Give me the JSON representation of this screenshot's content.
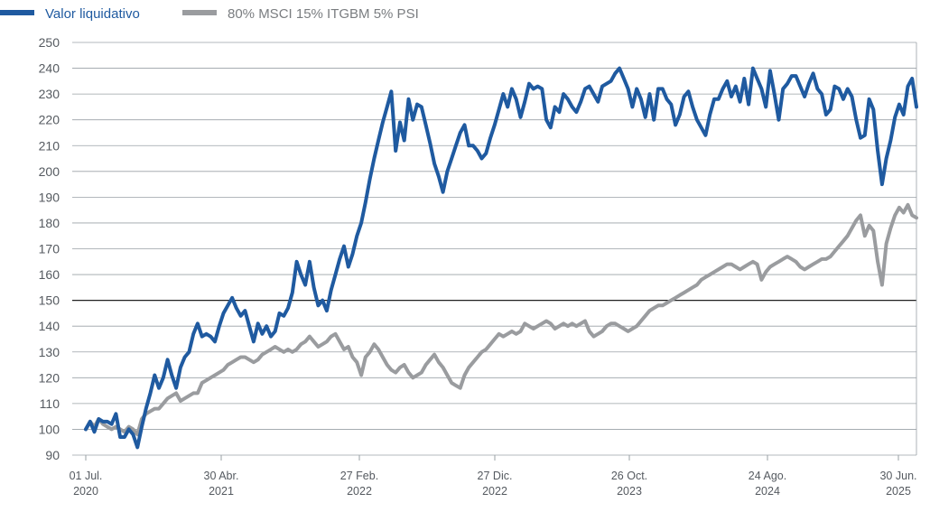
{
  "colors": {
    "series_primary": "#1f5aa0",
    "series_secondary": "#9a9c9f",
    "grid": "#9aa0a6",
    "grid_highlight": "#222222",
    "text": "#555a60"
  },
  "chart_data": {
    "type": "line",
    "title": "",
    "xlabel": "",
    "ylabel": "",
    "ylim": [
      90,
      250
    ],
    "yticks": [
      90,
      100,
      110,
      120,
      130,
      140,
      150,
      160,
      170,
      180,
      190,
      200,
      210,
      220,
      230,
      240,
      250
    ],
    "highlight_gridline": 150,
    "x_range_years": [
      2020.5,
      2025.5
    ],
    "x_ticks": [
      {
        "line1": "01 Jul.",
        "line2": "2020",
        "t": 2020.5
      },
      {
        "line1": "30 Abr.",
        "line2": "2021",
        "t": 2021.0
      },
      {
        "line1": "27 Feb.",
        "line2": "2022",
        "t": 2021.5
      },
      {
        "line1": "27 Dic.",
        "line2": "2022",
        "t": 2022.0
      },
      {
        "line1": "26 Oct.",
        "line2": "2023",
        "t": 2022.5
      },
      {
        "line1": "24 Ago.",
        "line2": "2024",
        "t": 2023.0
      },
      {
        "line1": "30 Jun.",
        "line2": "2025",
        "t": 2023.5
      }
    ],
    "legend": {
      "placement": "top-left"
    },
    "series": [
      {
        "name": "Valor liquidativo",
        "color": "#1f5aa0",
        "values": [
          100,
          103,
          99,
          104,
          103,
          103,
          102,
          106,
          97,
          97,
          100,
          98,
          93,
          101,
          108,
          114,
          121,
          116,
          120,
          127,
          121,
          116,
          124,
          128,
          130,
          137,
          141,
          136,
          137,
          136,
          134,
          140,
          145,
          148,
          151,
          147,
          144,
          146,
          140,
          134,
          141,
          137,
          140,
          136,
          138,
          145,
          144,
          147,
          153,
          165,
          160,
          156,
          165,
          155,
          148,
          150,
          146,
          154,
          160,
          166,
          171,
          163,
          168,
          175,
          180,
          188,
          197,
          205,
          212,
          219,
          225,
          231,
          208,
          219,
          212,
          228,
          220,
          226,
          225,
          218,
          211,
          203,
          198,
          192,
          200,
          205,
          210,
          215,
          218,
          210,
          210,
          208,
          205,
          207,
          213,
          218,
          224,
          230,
          225,
          232,
          228,
          221,
          227,
          234,
          232,
          233,
          232,
          220,
          217,
          225,
          223,
          230,
          228,
          225,
          223,
          227,
          232,
          233,
          230,
          227,
          233,
          234,
          235,
          238,
          240,
          236,
          232,
          225,
          232,
          228,
          221,
          230,
          220,
          232,
          232,
          228,
          226,
          218,
          222,
          229,
          231,
          225,
          220,
          217,
          214,
          222,
          228,
          228,
          232,
          235,
          229,
          233,
          227,
          236,
          226,
          240,
          236,
          232,
          225,
          239,
          230,
          220,
          232,
          234,
          237,
          237,
          233,
          229,
          234,
          238,
          232,
          230,
          222,
          224,
          233,
          232,
          228,
          232,
          229,
          220,
          213,
          214,
          228,
          224,
          208,
          195,
          205,
          212,
          221,
          226,
          222,
          233,
          236,
          225
        ]
      },
      {
        "name": "80% MSCI 15% ITGBM 5% PSI",
        "color": "#9a9c9f",
        "values": [
          100,
          103,
          101,
          104,
          102,
          101,
          100,
          101,
          100,
          99,
          101,
          100,
          98,
          104,
          106,
          107,
          108,
          108,
          110,
          112,
          113,
          114,
          111,
          112,
          113,
          114,
          114,
          118,
          119,
          120,
          121,
          122,
          123,
          125,
          126,
          127,
          128,
          128,
          127,
          126,
          127,
          129,
          130,
          131,
          132,
          131,
          130,
          131,
          130,
          131,
          133,
          134,
          136,
          134,
          132,
          133,
          134,
          136,
          137,
          134,
          131,
          132,
          128,
          126,
          121,
          128,
          130,
          133,
          131,
          128,
          125,
          123,
          122,
          124,
          125,
          122,
          120,
          121,
          122,
          125,
          127,
          129,
          126,
          124,
          121,
          118,
          117,
          116,
          121,
          124,
          126,
          128,
          130,
          131,
          133,
          135,
          137,
          136,
          137,
          138,
          137,
          138,
          141,
          140,
          139,
          140,
          141,
          142,
          141,
          139,
          140,
          141,
          140,
          141,
          140,
          141,
          142,
          138,
          136,
          137,
          138,
          140,
          141,
          141,
          140,
          139,
          138,
          139,
          140,
          142,
          144,
          146,
          147,
          148,
          148,
          149,
          150,
          151,
          152,
          153,
          154,
          155,
          156,
          158,
          159,
          160,
          161,
          162,
          163,
          164,
          164,
          163,
          162,
          163,
          164,
          165,
          164,
          158,
          161,
          163,
          164,
          165,
          166,
          167,
          166,
          165,
          163,
          162,
          163,
          164,
          165,
          166,
          166,
          167,
          169,
          171,
          173,
          175,
          178,
          181,
          183,
          175,
          179,
          177,
          165,
          156,
          172,
          178,
          183,
          186,
          184,
          187,
          183,
          182
        ]
      }
    ]
  }
}
